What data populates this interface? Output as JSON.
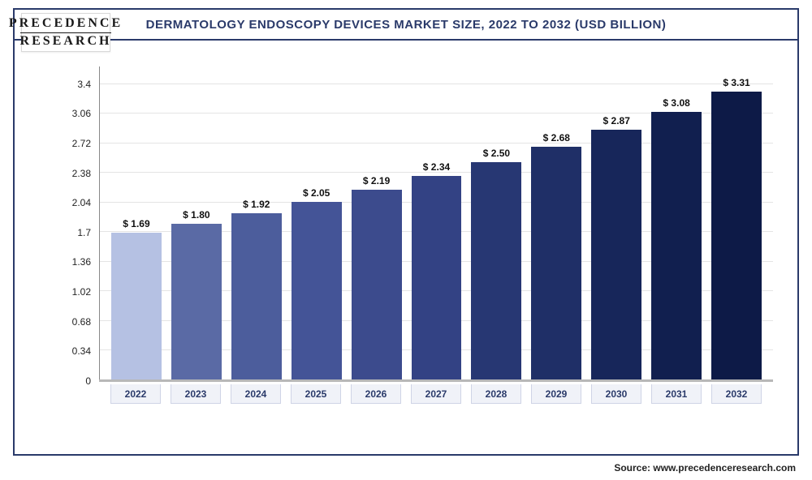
{
  "logo": {
    "line1": "PRECEDENCE",
    "line2": "RESEARCH"
  },
  "chart": {
    "type": "bar",
    "title": "DERMATOLOGY ENDOSCOPY DEVICES MARKET SIZE, 2022 TO 2032 (USD BILLION)",
    "title_fontsize": 15,
    "title_color": "#2a3a6a",
    "border_color": "#2a3a6a",
    "background_color": "#ffffff",
    "grid_color": "#e4e4e4",
    "axis_color": "#888888",
    "ylim": [
      0,
      3.6
    ],
    "yticks": [
      0,
      0.34,
      0.68,
      1.02,
      1.36,
      1.7,
      2.04,
      2.38,
      2.72,
      3.06,
      3.4
    ],
    "ytick_labels": [
      "0",
      "0.34",
      "0.68",
      "1.02",
      "1.36",
      "1.7",
      "2.04",
      "2.38",
      "2.72",
      "3.06",
      "3.4"
    ],
    "label_fontsize": 12,
    "categories": [
      "2022",
      "2023",
      "2024",
      "2025",
      "2026",
      "2027",
      "2028",
      "2029",
      "2030",
      "2031",
      "2032"
    ],
    "values": [
      1.69,
      1.8,
      1.92,
      2.05,
      2.19,
      2.34,
      2.5,
      2.68,
      2.87,
      3.08,
      3.31
    ],
    "value_prefix": "$ ",
    "bar_colors": [
      "#b5c1e3",
      "#5a6aa5",
      "#4c5d9c",
      "#445497",
      "#3c4b8d",
      "#334284",
      "#273773",
      "#1f2f67",
      "#17265a",
      "#111f4f",
      "#0d1a47"
    ],
    "bar_width": 0.78,
    "xlabel_bg": "#f0f2f8",
    "xlabel_border": "#cfd4e6",
    "xlabel_color": "#2a3a6a"
  },
  "source": "Source: www.precedenceresearch.com"
}
